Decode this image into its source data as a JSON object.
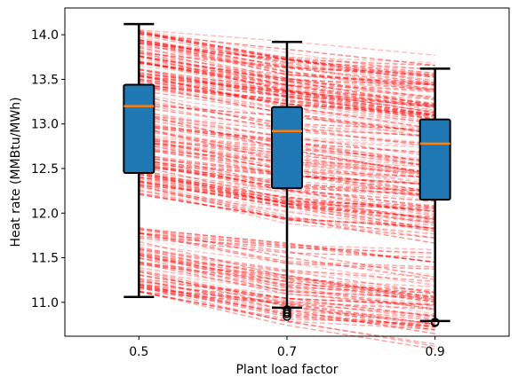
{
  "chart_data": {
    "type": "box",
    "title": "",
    "xlabel": "Plant load factor",
    "ylabel": "Heat rate (MMBtu/MWh)",
    "xlim": [
      0.4,
      1.0
    ],
    "ylim": [
      10.62,
      14.3
    ],
    "categories": [
      "0.5",
      "0.7",
      "0.9"
    ],
    "x": [
      0.5,
      0.7,
      0.9
    ],
    "y_ticks": [
      "11.0",
      "11.5",
      "12.0",
      "12.5",
      "13.0",
      "13.5",
      "14.0"
    ],
    "boxes": [
      {
        "x": 0.5,
        "whisker_low": 11.06,
        "q1": 12.45,
        "median": 13.2,
        "q3": 13.44,
        "whisker_high": 14.12,
        "outliers": []
      },
      {
        "x": 0.7,
        "whisker_low": 10.94,
        "q1": 12.28,
        "median": 12.92,
        "q3": 13.19,
        "whisker_high": 13.92,
        "outliers": [
          10.92,
          10.89,
          10.87,
          10.84
        ]
      },
      {
        "x": 0.9,
        "whisker_low": 10.79,
        "q1": 12.15,
        "median": 12.78,
        "q3": 13.05,
        "whisker_high": 13.62,
        "outliers": [
          10.78,
          10.77
        ]
      }
    ],
    "trace_lines": {
      "description_free": true,
      "count": 260,
      "color": "#ff0000",
      "style": "dashed"
    },
    "colors": {
      "box_fill": "#1f77b4",
      "median": "#ff7f0e",
      "whisker": "#000000",
      "lines": "#ff0000"
    },
    "grid": false,
    "legend": "none"
  }
}
